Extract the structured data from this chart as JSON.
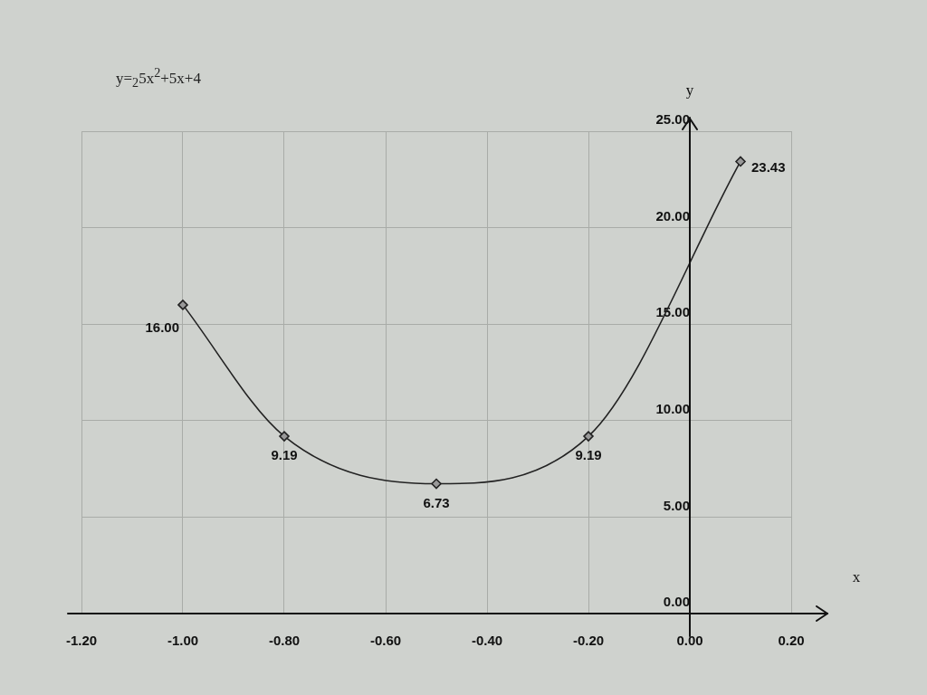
{
  "chart_data": {
    "type": "line",
    "title": "y=$_{2}$5x$^{2}$+5x+4",
    "xlabel": "x",
    "ylabel": "y",
    "x": [
      -1.0,
      -0.8,
      -0.5,
      -0.2,
      0.1
    ],
    "series": [
      {
        "color": "#222222",
        "values": [
          16.0,
          9.19,
          6.73,
          9.19,
          23.43
        ],
        "value_labels": [
          "16.00",
          "9.19",
          "6.73",
          "9.19",
          "23.43"
        ]
      }
    ],
    "xlim": [
      -1.2,
      0.2
    ],
    "xticks": [
      {
        "value": -1.2,
        "label": "-1.20"
      },
      {
        "value": -1.0,
        "label": "-1.00"
      },
      {
        "value": -0.8,
        "label": "-0.80"
      },
      {
        "value": -0.6,
        "label": "-0.60"
      },
      {
        "value": -0.4,
        "label": "-0.40"
      },
      {
        "value": -0.2,
        "label": "-0.20"
      },
      {
        "value": 0,
        "label": "0.00"
      },
      {
        "value": 0.2,
        "label": "0.20"
      }
    ],
    "ylim": [
      0,
      25
    ],
    "yticks": [
      {
        "value": 0,
        "label": "0.00"
      },
      {
        "value": 5,
        "label": "5.00"
      },
      {
        "value": 10,
        "label": "10.00"
      },
      {
        "value": 15,
        "label": "15.00"
      },
      {
        "value": 20,
        "label": "20.00"
      },
      {
        "value": 25,
        "label": "25.00"
      }
    ],
    "grid": true,
    "marker": "diamond",
    "legend": false
  }
}
